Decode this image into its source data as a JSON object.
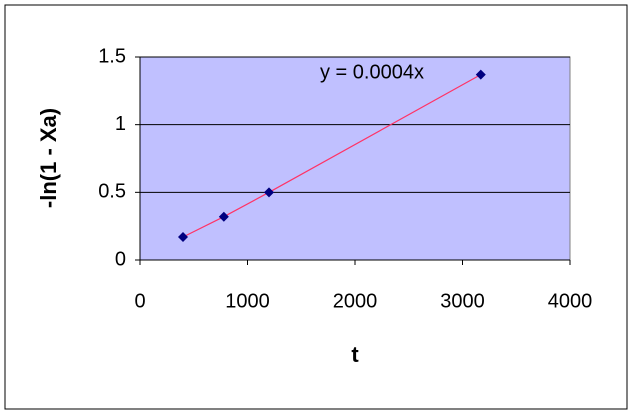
{
  "chart_data": {
    "type": "scatter",
    "x_label": "t",
    "y_label": "-ln(1 - Xa)",
    "annotation": "y = 0.0004x",
    "series": [
      {
        "color": "#000080",
        "line_color": "#ff3366",
        "x": [
          400,
          780,
          1200,
          3170
        ],
        "values": [
          0.17,
          0.32,
          0.5,
          1.37
        ]
      }
    ],
    "xlim": [
      0,
      4000
    ],
    "xticks": [
      0,
      1000,
      2000,
      3000,
      4000
    ],
    "ylim": [
      0,
      1.5
    ],
    "yticks": [
      0,
      0.5,
      1,
      1.5
    ],
    "grid": true,
    "plot_background": "#c0c0ff"
  }
}
